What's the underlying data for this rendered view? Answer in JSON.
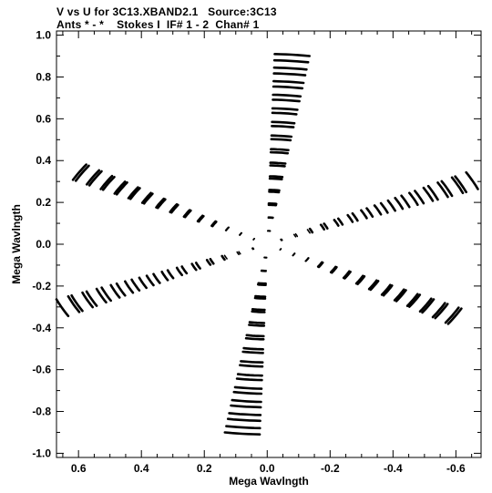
{
  "header": {
    "line1": "V vs U for 3C13.XBAND2.1   Source:3C13",
    "line2": "Ants * - *    Stokes I  IF# 1 - 2  Chan# 1"
  },
  "chart_data": {
    "type": "scatter",
    "title": "V vs U for 3C13.XBAND2.1   Source:3C13",
    "subtitle": "Ants * - *    Stokes I  IF# 1 - 2  Chan# 1",
    "xlabel": "Mega Wavlngth",
    "ylabel": "Mega Wavlngth",
    "xlim": [
      0.67,
      -0.68
    ],
    "ylim": [
      -1.02,
      1.02
    ],
    "x_reversed": true,
    "xticks": [
      0.6,
      0.4,
      0.2,
      0.0,
      -0.2,
      -0.4,
      -0.6
    ],
    "xtick_labels": [
      "0.6",
      "0.4",
      "0.2",
      "0.0",
      "-0.2",
      "-0.4",
      "-0.6"
    ],
    "yticks": [
      1.0,
      0.8,
      0.6,
      0.4,
      0.2,
      0.0,
      -0.2,
      -0.4,
      -0.6,
      -0.8,
      -1.0
    ],
    "ytick_labels": [
      "1.0",
      "0.8",
      "0.6",
      "0.4",
      "0.2",
      "0.0",
      "-0.2",
      "-0.4",
      "-0.6",
      "-0.8",
      "-1.0"
    ],
    "grid": false,
    "marker_color": "#000000",
    "baseline_arms": [
      {
        "angle_deg": 95,
        "r_max": 0.88
      },
      {
        "angle_deg": 155,
        "r_max": 0.68
      },
      {
        "angle_deg": 210,
        "r_max": 0.69
      },
      {
        "angle_deg": 275,
        "r_max": 0.91
      },
      {
        "angle_deg": 335,
        "r_max": 0.72
      },
      {
        "angle_deg": 30,
        "r_max": 0.68
      }
    ],
    "tracks_per_arm": 14,
    "track_arc_deg": 7,
    "points_per_track": 7,
    "plus_conjugate_points": true
  }
}
